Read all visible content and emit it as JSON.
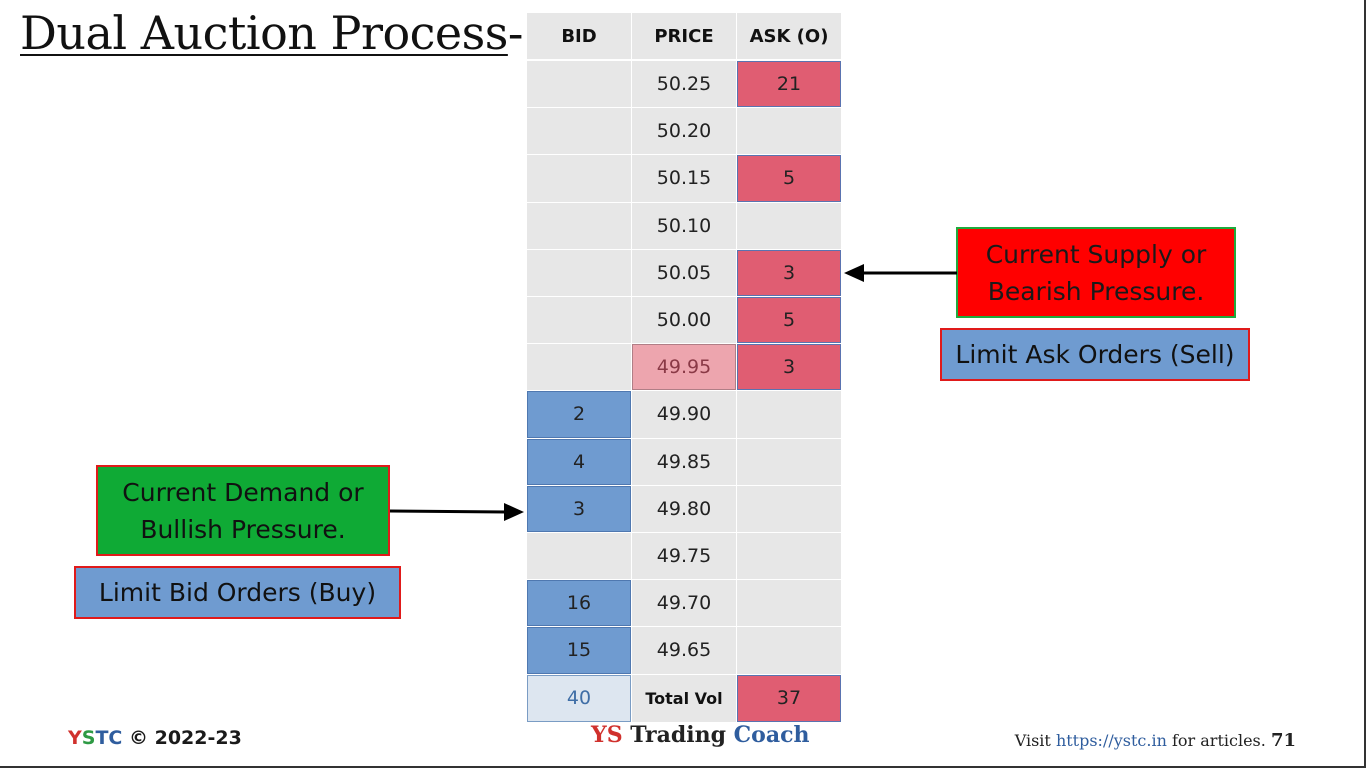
{
  "title": "Dual Auction Process",
  "title_suffix": "-",
  "table": {
    "headers": {
      "bid": "BID",
      "price": "PRICE",
      "ask": "ASK (O)"
    },
    "rows": [
      {
        "bid": "",
        "price": "50.25",
        "ask": "21"
      },
      {
        "bid": "",
        "price": "50.20",
        "ask": ""
      },
      {
        "bid": "",
        "price": "50.15",
        "ask": "5"
      },
      {
        "bid": "",
        "price": "50.10",
        "ask": ""
      },
      {
        "bid": "",
        "price": "50.05",
        "ask": "3"
      },
      {
        "bid": "",
        "price": "50.00",
        "ask": "5"
      },
      {
        "bid": "",
        "price": "49.95",
        "ask": "3"
      },
      {
        "bid": "2",
        "price": "49.90",
        "ask": ""
      },
      {
        "bid": "4",
        "price": "49.85",
        "ask": ""
      },
      {
        "bid": "3",
        "price": "49.80",
        "ask": ""
      },
      {
        "bid": "",
        "price": "49.75",
        "ask": ""
      },
      {
        "bid": "16",
        "price": "49.70",
        "ask": ""
      },
      {
        "bid": "15",
        "price": "49.65",
        "ask": ""
      }
    ],
    "total": {
      "bid": "40",
      "label": "Total Vol",
      "ask": "37"
    },
    "current_price": "49.95"
  },
  "callouts": {
    "supply": "Current Supply or Bearish Pressure.",
    "supply_line1": "Current Supply or",
    "supply_line2": "Bearish Pressure.",
    "ask_orders": "Limit Ask Orders (Sell)",
    "demand_line1": "Current Demand or",
    "demand_line2": "Bullish Pressure.",
    "bid_orders": "Limit Bid Orders (Buy)"
  },
  "footer": {
    "brand_y": "Y",
    "brand_s": "S",
    "brand_t": "T",
    "brand_c": "C",
    "copyright": "© 2022-23",
    "center_ys": "YS",
    "center_trading": "Trading",
    "center_coach": "Coach",
    "visit": "Visit",
    "url": "https://ystc.in",
    "for_articles": "for articles.",
    "page_number": "71"
  },
  "colors": {
    "bid": "#6f9bd0",
    "ask": "#e05d72",
    "supply_box": "#ff0000",
    "demand_box": "#0faa35",
    "brand_red": "#d0312d",
    "brand_green": "#2e9a44",
    "brand_blue": "#2f5d9e"
  }
}
